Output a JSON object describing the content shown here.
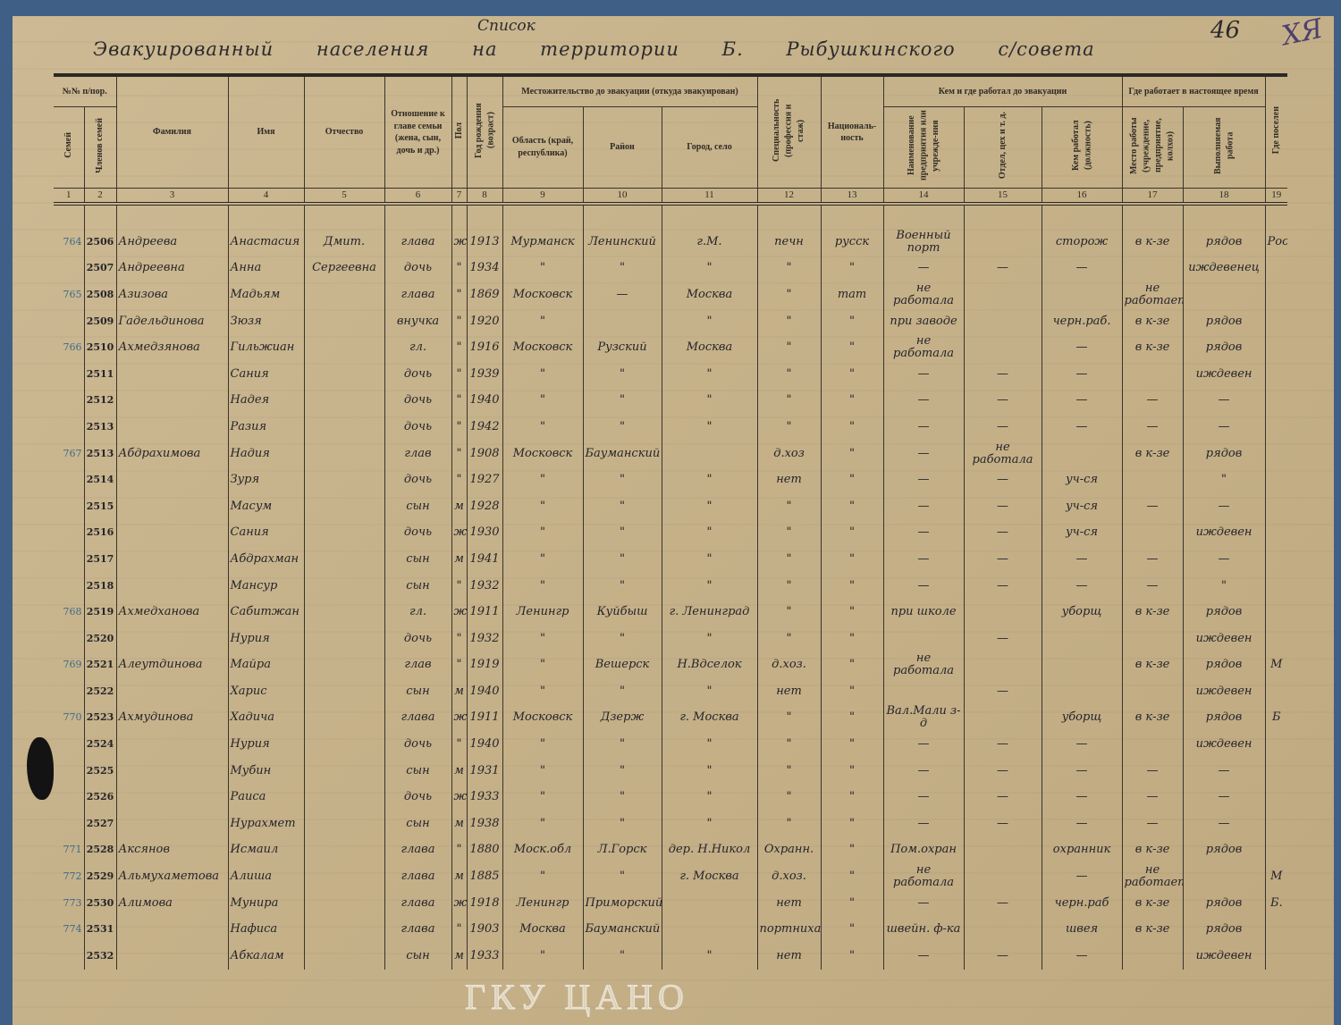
{
  "document": {
    "title_top": "Список",
    "title": "Эвакуированный населения на территории Б. Рыбушкинского с/совета",
    "page_number": "46",
    "corner_mark": "ХЯ",
    "watermark": "ГКУ ЦАНО"
  },
  "header": {
    "nn": "№№ п/пор.",
    "families": "Семей",
    "members": "Членов семей",
    "surname": "Фамилия",
    "name": "Имя",
    "patronymic": "Отчество",
    "relation": "Отношение к главе семьи (жена, сын, дочь и др.)",
    "sex": "Пол",
    "birth_year": "Год рождения (возраст)",
    "residence_group": "Местожительство до эвакуации (откуда эвакуирован)",
    "region": "Область (край, республика)",
    "district": "Район",
    "city": "Город, село",
    "specialty": "Специальность (профессия и стаж)",
    "nationality": "Националь-ность",
    "prior_work_group": "Кем и где работал до эвакуации",
    "enterprise": "Наименование предприятия или учрежде-ния",
    "department": "Отдел, цех и т. д.",
    "position": "Кем работал (должность)",
    "current_work_group": "Где работает в настоящее время",
    "current_place": "Место работы (учреждение, предприятие, колхоз)",
    "current_job": "Выполняемая работа",
    "settlement": "Где поселен",
    "column_numbers": [
      "1",
      "2",
      "3",
      "4",
      "5",
      "6",
      "7",
      "8",
      "9",
      "10",
      "11",
      "12",
      "13",
      "14",
      "15",
      "16",
      "17",
      "18",
      "19"
    ]
  },
  "rows": [
    [
      "764",
      "2506",
      "Андреева",
      "Анастасия",
      "Дмит.",
      "глава",
      "ж",
      "1913",
      "Мурманск",
      "Ленинский",
      "г.М.",
      "печн",
      "русск",
      "Военный порт",
      "",
      "сторож",
      "в к-зе",
      "рядов",
      "Рос"
    ],
    [
      "",
      "2507",
      "Андреевна",
      "Анна",
      "Сергеевна",
      "дочь",
      "\"",
      "1934",
      "\"",
      "\"",
      "\"",
      "\"",
      "\"",
      "—",
      "—",
      "—",
      "",
      "иждевенец",
      ""
    ],
    [
      "765",
      "2508",
      "Азизова",
      "Мадьям",
      "",
      "глава",
      "\"",
      "1869",
      "Московск",
      "—",
      "Москва",
      "\"",
      "тат",
      "не работала",
      "",
      "",
      "не работает",
      "",
      ""
    ],
    [
      "",
      "2509",
      "Гадельдинова",
      "Зюзя",
      "",
      "внучка",
      "\"",
      "1920",
      "\"",
      "",
      "\"",
      "\"",
      "\"",
      "при заводе",
      "",
      "черн.раб.",
      "в к-зе",
      "рядов",
      ""
    ],
    [
      "766",
      "2510",
      "Ахмедзянова",
      "Гильжиан",
      "",
      "гл.",
      "\"",
      "1916",
      "Московск",
      "Рузский",
      "Москва",
      "\"",
      "\"",
      "не работала",
      "",
      "—",
      "в к-зе",
      "рядов",
      ""
    ],
    [
      "",
      "2511",
      "",
      "Сания",
      "",
      "дочь",
      "\"",
      "1939",
      "\"",
      "\"",
      "\"",
      "\"",
      "\"",
      "—",
      "—",
      "—",
      "",
      "иждевен",
      ""
    ],
    [
      "",
      "2512",
      "",
      "Надея",
      "",
      "дочь",
      "\"",
      "1940",
      "\"",
      "\"",
      "\"",
      "\"",
      "\"",
      "—",
      "—",
      "—",
      "—",
      "—",
      ""
    ],
    [
      "",
      "2513",
      "",
      "Разия",
      "",
      "дочь",
      "\"",
      "1942",
      "\"",
      "\"",
      "\"",
      "\"",
      "\"",
      "—",
      "—",
      "—",
      "—",
      "—",
      ""
    ],
    [
      "767",
      "2513",
      "Абдрахимова",
      "Надия",
      "",
      "глав",
      "\"",
      "1908",
      "Московск",
      "Бауманский",
      "",
      "д.хоз",
      "\"",
      "—",
      "не работала",
      "",
      "в к-зе",
      "рядов",
      ""
    ],
    [
      "",
      "2514",
      "",
      "Зуря",
      "",
      "дочь",
      "\"",
      "1927",
      "\"",
      "\"",
      "\"",
      "нет",
      "\"",
      "—",
      "—",
      "уч-ся",
      "",
      "\"",
      ""
    ],
    [
      "",
      "2515",
      "",
      "Масум",
      "",
      "сын",
      "м",
      "1928",
      "\"",
      "\"",
      "\"",
      "\"",
      "\"",
      "—",
      "—",
      "уч-ся",
      "—",
      "—",
      ""
    ],
    [
      "",
      "2516",
      "",
      "Сания",
      "",
      "дочь",
      "ж",
      "1930",
      "\"",
      "\"",
      "\"",
      "\"",
      "\"",
      "—",
      "—",
      "уч-ся",
      "",
      "иждевен",
      ""
    ],
    [
      "",
      "2517",
      "",
      "Абдрахман",
      "",
      "сын",
      "м",
      "1941",
      "\"",
      "\"",
      "\"",
      "\"",
      "\"",
      "—",
      "—",
      "—",
      "—",
      "—",
      ""
    ],
    [
      "",
      "2518",
      "",
      "Мансур",
      "",
      "сын",
      "\"",
      "1932",
      "\"",
      "\"",
      "\"",
      "\"",
      "\"",
      "—",
      "—",
      "—",
      "—",
      "\"",
      ""
    ],
    [
      "768",
      "2519",
      "Ахмедханова",
      "Сабитжан",
      "",
      "гл.",
      "ж",
      "1911",
      "Ленингр",
      "Куйбыш",
      "г. Ленинград",
      "\"",
      "\"",
      "при школе",
      "",
      "уборщ",
      "в к-зе",
      "рядов",
      ""
    ],
    [
      "",
      "2520",
      "",
      "Нурия",
      "",
      "дочь",
      "\"",
      "1932",
      "\"",
      "\"",
      "\"",
      "\"",
      "\"",
      "",
      "—",
      "",
      "",
      "иждевен",
      ""
    ],
    [
      "769",
      "2521",
      "Алеутдинова",
      "Майра",
      "",
      "глав",
      "\"",
      "1919",
      "\"",
      "Вешерск",
      "Н.Вдселок",
      "д.хоз.",
      "\"",
      "не работала",
      "",
      "",
      "в к-зе",
      "рядов",
      "М"
    ],
    [
      "",
      "2522",
      "",
      "Харис",
      "",
      "сын",
      "м",
      "1940",
      "\"",
      "\"",
      "\"",
      "нет",
      "\"",
      "",
      "—",
      "",
      "",
      "иждевен",
      ""
    ],
    [
      "770",
      "2523",
      "Ахмудинова",
      "Хадича",
      "",
      "глава",
      "ж",
      "1911",
      "Московск",
      "Дзерж",
      "г. Москва",
      "\"",
      "\"",
      "Вал.Мали з-д",
      "",
      "уборщ",
      "в к-зе",
      "рядов",
      "Б"
    ],
    [
      "",
      "2524",
      "",
      "Нурия",
      "",
      "дочь",
      "\"",
      "1940",
      "\"",
      "\"",
      "\"",
      "\"",
      "\"",
      "—",
      "—",
      "—",
      "",
      "иждевен",
      ""
    ],
    [
      "",
      "2525",
      "",
      "Мубин",
      "",
      "сын",
      "м",
      "1931",
      "\"",
      "\"",
      "\"",
      "\"",
      "\"",
      "—",
      "—",
      "—",
      "—",
      "—",
      ""
    ],
    [
      "",
      "2526",
      "",
      "Раиса",
      "",
      "дочь",
      "ж",
      "1933",
      "\"",
      "\"",
      "\"",
      "\"",
      "\"",
      "—",
      "—",
      "—",
      "—",
      "—",
      ""
    ],
    [
      "",
      "2527",
      "",
      "Нурахмет",
      "",
      "сын",
      "м",
      "1938",
      "\"",
      "\"",
      "\"",
      "\"",
      "\"",
      "—",
      "—",
      "—",
      "—",
      "—",
      ""
    ],
    [
      "771",
      "2528",
      "Аксянов",
      "Исмаил",
      "",
      "глава",
      "\"",
      "1880",
      "Моск.обл",
      "Л.Горск",
      "дер. Н.Никол",
      "Охранн.",
      "\"",
      "Пом.охран",
      "",
      "охранник",
      "в к-зе",
      "рядов",
      ""
    ],
    [
      "772",
      "2529",
      "Альмухаметова",
      "Алиша",
      "",
      "глава",
      "м",
      "1885",
      "\"",
      "\"",
      "г. Москва",
      "д.хоз.",
      "\"",
      "не работала",
      "",
      "—",
      "не работает",
      "",
      "М"
    ],
    [
      "773",
      "2530",
      "Алимова",
      "Мунира",
      "",
      "глава",
      "ж",
      "1918",
      "Ленингр",
      "Приморский",
      "",
      "нет",
      "\"",
      "—",
      "—",
      "черн.раб",
      "в к-зе",
      "рядов",
      "Б."
    ],
    [
      "774",
      "2531",
      "",
      "Нафиса",
      "",
      "глава",
      "\"",
      "1903",
      "Москва",
      "Бауманский",
      "",
      "портниха",
      "\"",
      "швейн. ф-ка",
      "",
      "швея",
      "в к-зе",
      "рядов",
      ""
    ],
    [
      "",
      "2532",
      "",
      "Абкалам",
      "",
      "сын",
      "м",
      "1933",
      "\"",
      "\"",
      "\"",
      "нет",
      "\"",
      "—",
      "—",
      "—",
      "",
      "иждевен",
      ""
    ]
  ]
}
